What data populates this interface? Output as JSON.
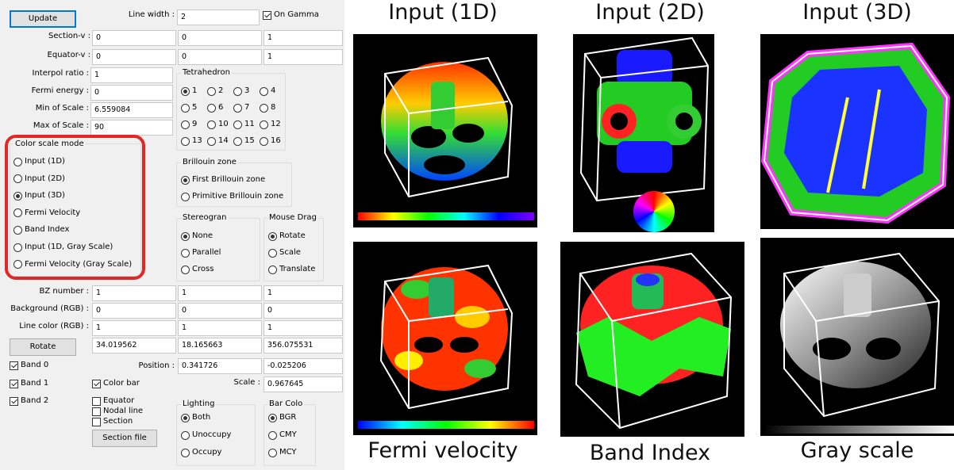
{
  "panel": {
    "update_button": "Update",
    "line_width_label": "Line width :",
    "line_width_value": "2",
    "on_gamma_label": "On Gamma",
    "section_v_label": "Section-v :",
    "section_v": [
      "0",
      "0",
      "1"
    ],
    "equator_v_label": "Equator-v :",
    "equator_v": [
      "0",
      "0",
      "1"
    ],
    "interpol_label": "Interpol ratio :",
    "interpol_value": "1",
    "fermi_energy_label": "Fermi energy :",
    "fermi_energy_value": "0",
    "min_scale_label": "Min of Scale :",
    "min_scale_value": "6.559084",
    "max_scale_label": "Max of Scale :",
    "max_scale_value": "90",
    "tetrahedron_title": "Tetrahedron",
    "tetrahedron_options": [
      "1",
      "2",
      "3",
      "4",
      "5",
      "6",
      "7",
      "8",
      "9",
      "10",
      "11",
      "12",
      "13",
      "14",
      "15",
      "16"
    ],
    "tetrahedron_selected": "1",
    "color_scale_title": "Color scale mode",
    "color_scale_options": [
      "Input (1D)",
      "Input (2D)",
      "Input (3D)",
      "Fermi Velocity",
      "Band Index",
      "Input (1D, Gray Scale)",
      "Fermi Velocity (Gray Scale)"
    ],
    "color_scale_selected": "Input (3D)",
    "brillouin_title": "Brillouin zone",
    "brillouin_options": [
      "First Brillouin zone",
      "Primitive Brillouin zone"
    ],
    "brillouin_selected": "First Brillouin zone",
    "stereogram_title": "Stereogran",
    "stereogram_options": [
      "None",
      "Parallel",
      "Cross"
    ],
    "stereogram_selected": "None",
    "mouse_drag_title": "Mouse Drag",
    "mouse_drag_options": [
      "Rotate",
      "Scale",
      "Translate"
    ],
    "mouse_drag_selected": "Rotate",
    "bz_number_label": "BZ number :",
    "bz_number": [
      "1",
      "1",
      "1"
    ],
    "background_label": "Background (RGB) :",
    "background": [
      "0",
      "0",
      "0"
    ],
    "line_color_label": "Line color (RGB) :",
    "line_color": [
      "1",
      "1",
      "1"
    ],
    "rotate_button": "Rotate",
    "rotate_values": [
      "34.019562",
      "18.165663",
      "356.075531"
    ],
    "band0_label": "Band 0",
    "position_label": "Position :",
    "position_values": [
      "0.341726",
      "-0.025206"
    ],
    "band1_label": "Band 1",
    "color_bar_label": "Color bar",
    "scale_label": "Scale :",
    "scale_value": "0.967645",
    "band2_label": "Band 2",
    "equator_label": "Equator",
    "nodal_line_label": "Nodal line",
    "section_label": "Section",
    "section_file_button": "Section file",
    "lighting_title": "Lighting",
    "lighting_options": [
      "Both",
      "Unoccupy",
      "Occupy"
    ],
    "lighting_selected": "Both",
    "bar_color_title": "Bar Colo",
    "bar_color_options": [
      "BGR",
      "CMY",
      "MCY"
    ],
    "bar_color_selected": "BGR"
  },
  "captions": {
    "input_1d": "Input (1D)",
    "input_2d": "Input (2D)",
    "input_3d": "Input (3D)",
    "fermi_velocity": "Fermi velocity",
    "band_index": "Band Index",
    "gray_scale": "Gray scale"
  },
  "colors": {
    "highlight": "#e32626",
    "accent": "#0078d7",
    "panel_bg": "#f0f0f0",
    "plot_bg": "#000000"
  }
}
